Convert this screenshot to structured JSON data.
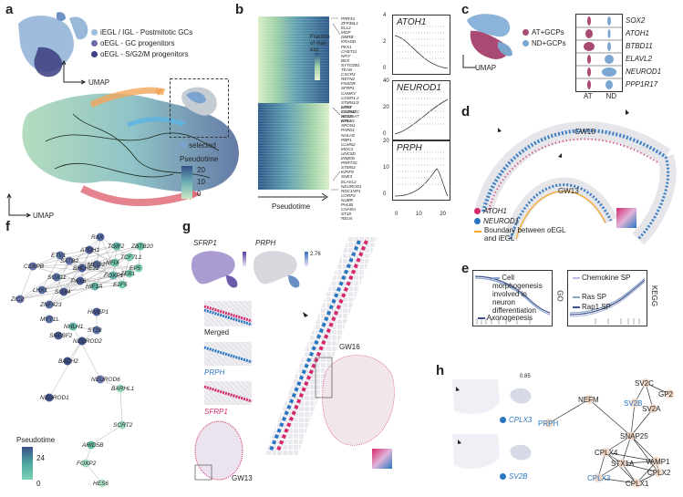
{
  "panels": {
    "a": "a",
    "b": "b",
    "c": "c",
    "d": "d",
    "e": "e",
    "f": "f",
    "g": "g",
    "h": "h"
  },
  "a": {
    "legend": [
      {
        "label": "iEGL / IGL - Postmitotic GCs",
        "color": "#9fbcd8"
      },
      {
        "label": "oEGL - GC progenitors",
        "color": "#6a6fa8"
      },
      {
        "label": "oEGL - S/G2/M progenitors",
        "color": "#3e3f86"
      }
    ],
    "umap_label": "UMAP",
    "selected_label": "selected",
    "pseudotime_title": "Pseudotime",
    "pseudotime_ticks": [
      "20",
      "10",
      "0"
    ]
  },
  "b": {
    "legend_title": "Fraction of max exp",
    "genes_top": [
      "PRRX1",
      "ZFP36L1",
      "ELL2",
      "MGP",
      "DMRB",
      "KRADD",
      "PKX1",
      "CHST11",
      "NFIY",
      "BEX",
      "SYTO2B1",
      "TEAN",
      "CXCR4",
      "RETN2",
      "FNSDR",
      "SFRP1",
      "CAMKV",
      "COSR1.2",
      "STMN1/3",
      "NTNF",
      "ZC3H12C",
      "HES6",
      "ETV1"
    ],
    "genes_bottom": [
      "LHX1",
      "CADM2",
      "SLC26A7",
      "NHLH1",
      "SPON1",
      "PARD1",
      "NHLH2",
      "PBP1",
      "CLMN2",
      "MOC1",
      "UNC5D",
      "INMDD",
      "PRRT3C",
      "STMN3",
      "KIFIF8",
      "SNE3",
      "ELAVL2",
      "NEUROD1",
      "RDC1NP1",
      "CORP2",
      "NUBR",
      "PHLBI",
      "CHARA",
      "ST18",
      "RELN"
    ],
    "xlabel": "Pseudotime",
    "genes": [
      {
        "name": "ATOH1",
        "ticks": [
          "4",
          "2",
          "0"
        ]
      },
      {
        "name": "NEUROD1",
        "ticks": [
          "40",
          "20",
          "0"
        ]
      },
      {
        "name": "PRPH",
        "ticks": [
          "20",
          "10",
          "0"
        ]
      }
    ],
    "xticks": [
      "0",
      "10",
      "20"
    ]
  },
  "c": {
    "legend": [
      {
        "label": "AT+GCPs",
        "color": "#a84a72"
      },
      {
        "label": "ND+GCPs",
        "color": "#7aa6cf"
      }
    ],
    "umap_label": "UMAP",
    "genes": [
      "SOX2",
      "ATOH1",
      "BTBD11",
      "ELAVL2",
      "NEUROD1",
      "PPP1R17"
    ],
    "xticks": [
      "AT",
      "ND"
    ]
  },
  "d": {
    "stage_top": "GW16",
    "stage_bottom": "GW13",
    "legend": [
      {
        "label": "ATOH1",
        "color": "#d6296d"
      },
      {
        "label": "NEUROD1",
        "color": "#2b76c2"
      },
      {
        "label": "Boundary between oEGL and iEGL",
        "color": "#f5a623"
      }
    ]
  },
  "e": {
    "left_terms": [
      "Cell morphogenesis involved in neuron differentiation",
      "Axonogenesis"
    ],
    "left_side": "GO",
    "right_terms": [
      "Chemokine SP",
      "Ras SP",
      "Rap1 SP"
    ],
    "right_side": "KEGG"
  },
  "f": {
    "nodes": [
      "RAX",
      "TGIF2",
      "ZBTB20",
      "ATOH1",
      "TCF7L1",
      "ETV1",
      "SATB2",
      "CEBPB",
      "MEIS2",
      "NFIX",
      "BHLHE22",
      "FOXP1",
      "SOX11",
      "ZEB1",
      "EP5",
      "LHX1",
      "SOX4",
      "ZIC2",
      "ZNF423",
      "HIF1A",
      "E2F5",
      "PAX6",
      "MYT1L",
      "HIVEP1",
      "ST18",
      "NHLH1",
      "SREBF2",
      "NEUROD2",
      "BACH2",
      "NEUROD6",
      "BARHL1",
      "NEUROD1",
      "SCRT2",
      "ARID5B",
      "FOXP2",
      "HES6"
    ],
    "pseudotime_title": "Pseudotime",
    "pseudotime_ticks": [
      "24",
      "0"
    ]
  },
  "g": {
    "gene_a": "SFRP1",
    "gene_b": "PRPH",
    "merged_label": "Merged",
    "prph_label": "PRPH",
    "sfrp1_label": "SFRP1",
    "stage_right": "GW16",
    "stage_bottom": "GW13",
    "scale": "2.76"
  },
  "h": {
    "genes": [
      "CPLX3",
      "SV2B"
    ],
    "network": [
      "SV2C",
      "GP2",
      "NEFM",
      "SV2B",
      "SV2A",
      "PRPH",
      "SNAP25",
      "CPLX4",
      "STX1A",
      "VAMP1",
      "CPLX2",
      "CPLX3",
      "CPLX1"
    ],
    "scale": "0.85"
  }
}
